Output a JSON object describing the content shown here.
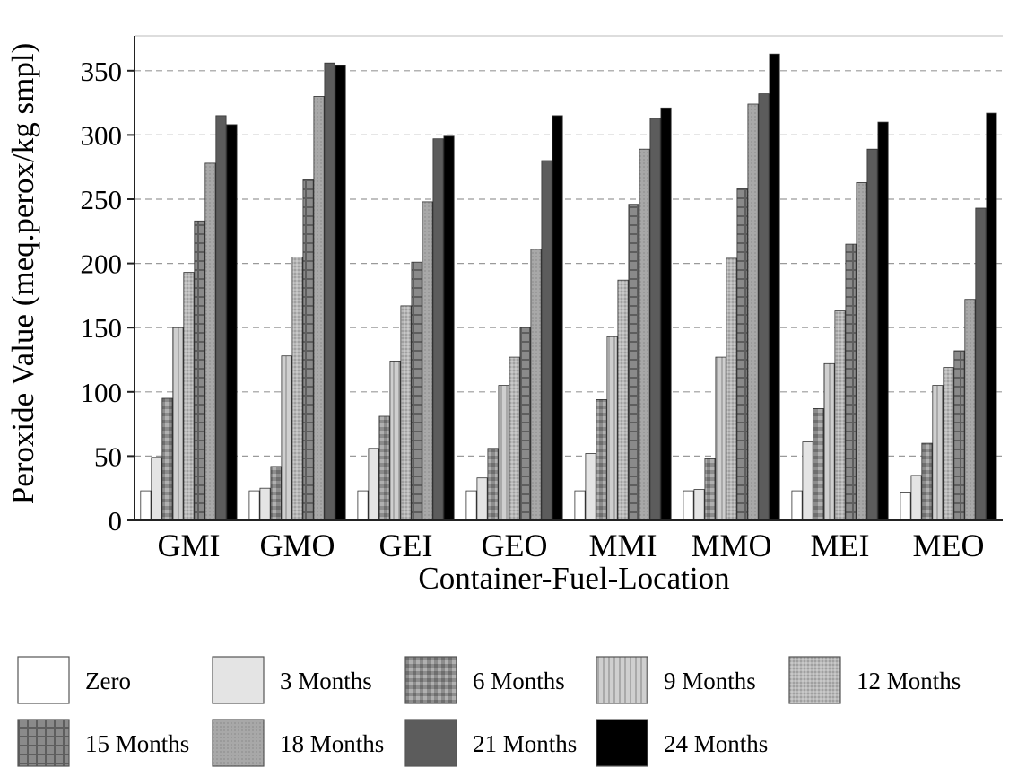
{
  "chart_data": {
    "type": "bar",
    "title": "",
    "xlabel": "Container-Fuel-Location",
    "ylabel": "Peroxide Value (meq.perox/kg smpl)",
    "ylim": [
      0,
      375
    ],
    "yticks": [
      0,
      50,
      100,
      150,
      200,
      250,
      300,
      350
    ],
    "grid": true,
    "legend_position": "bottom",
    "categories": [
      "GMI",
      "GMO",
      "GEI",
      "GEO",
      "MMI",
      "MMO",
      "MEI",
      "MEO"
    ],
    "series": [
      {
        "name": "Zero",
        "values": [
          23,
          23,
          23,
          23,
          23,
          23,
          23,
          22
        ]
      },
      {
        "name": "3 Months",
        "values": [
          49,
          25,
          56,
          33,
          52,
          24,
          61,
          35
        ]
      },
      {
        "name": "6 Months",
        "values": [
          95,
          42,
          81,
          56,
          94,
          48,
          87,
          60
        ]
      },
      {
        "name": "9 Months",
        "values": [
          150,
          128,
          124,
          105,
          143,
          127,
          122,
          105
        ]
      },
      {
        "name": "12 Months",
        "values": [
          193,
          205,
          167,
          127,
          187,
          204,
          163,
          119
        ]
      },
      {
        "name": "15 Months",
        "values": [
          233,
          265,
          201,
          150,
          246,
          258,
          215,
          132
        ]
      },
      {
        "name": "18 Months",
        "values": [
          278,
          330,
          248,
          211,
          289,
          324,
          263,
          172
        ]
      },
      {
        "name": "21 Months",
        "values": [
          315,
          356,
          297,
          280,
          313,
          332,
          289,
          243
        ]
      },
      {
        "name": "24 Months",
        "values": [
          308,
          354,
          299,
          315,
          321,
          363,
          310,
          317
        ]
      }
    ],
    "series_colors": [
      "#ffffff",
      "#e4e4e4",
      "#8a8a8a",
      "#c2c2c2",
      "#b4b4b4",
      "#7c7c7c",
      "#a6a6a6",
      "#5c5c5c",
      "#000000"
    ]
  }
}
